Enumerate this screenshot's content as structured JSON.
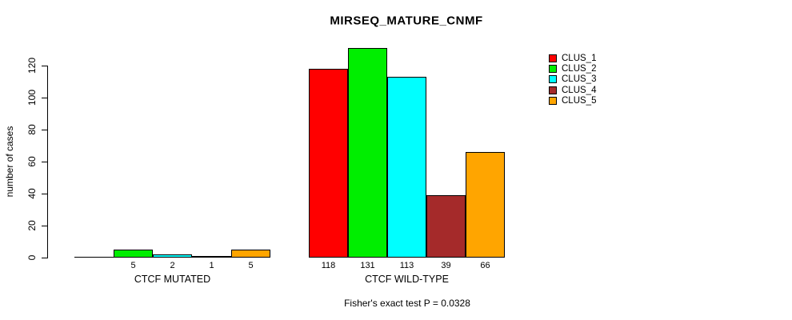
{
  "title": "MIRSEQ_MATURE_CNMF",
  "chart_data": {
    "type": "bar",
    "title": "MIRSEQ_MATURE_CNMF",
    "xlabel": "",
    "ylabel": "number of cases",
    "categories": [
      "CTCF MUTATED",
      "CTCF WILD-TYPE"
    ],
    "series": [
      {
        "name": "CLUS_1",
        "color": "#ff0000",
        "values": [
          0,
          118
        ]
      },
      {
        "name": "CLUS_2",
        "color": "#00ee00",
        "values": [
          5,
          131
        ]
      },
      {
        "name": "CLUS_3",
        "color": "#00ffff",
        "values": [
          2,
          113
        ]
      },
      {
        "name": "CLUS_4",
        "color": "#a52a2a",
        "values": [
          1,
          39
        ]
      },
      {
        "name": "CLUS_5",
        "color": "#ffa500",
        "values": [
          5,
          66
        ]
      }
    ],
    "yticks": [
      0,
      20,
      40,
      60,
      80,
      100,
      120
    ],
    "ylim": [
      0,
      131
    ],
    "grid": false,
    "legend_position": "top-right",
    "bar_value_labels": "shown under each bar; zero-value bars unlabeled",
    "annotation": "Fisher's exact test P = 0.0328"
  }
}
